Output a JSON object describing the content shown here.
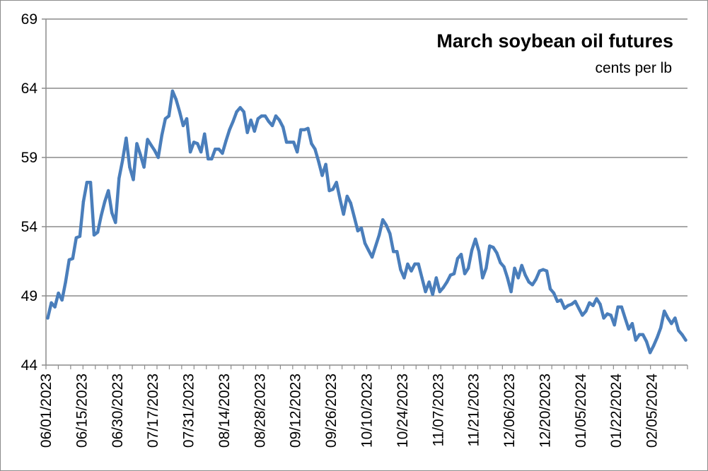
{
  "chart_data": {
    "type": "line",
    "title": "March soybean oil futures",
    "subtitle": "cents per lb",
    "xlabel": "",
    "ylabel": "",
    "ylim": [
      44,
      69
    ],
    "yticks": [
      44,
      49,
      54,
      59,
      64,
      69
    ],
    "grid": "horizontal",
    "colors": {
      "line": "#4a7ebb",
      "grid": "#8c8c8c"
    },
    "xtick_labels": [
      "06/01/2023",
      "06/15/2023",
      "06/30/2023",
      "07/17/2023",
      "07/31/2023",
      "08/14/2023",
      "08/28/2023",
      "09/12/2023",
      "09/26/2023",
      "10/10/2023",
      "10/24/2023",
      "11/07/2023",
      "11/21/2023",
      "12/06/2023",
      "12/20/2023",
      "01/05/2024",
      "01/22/2024",
      "02/05/2024"
    ],
    "series": [
      {
        "values": [
          47.4,
          48.5,
          48.2,
          49.2,
          48.7,
          50,
          51.6,
          51.7,
          53.2,
          53.3,
          55.8,
          57.2,
          57.2,
          53.4,
          53.6,
          54.8,
          55.8,
          56.6,
          55,
          54.3,
          57.5,
          58.8,
          60.4,
          58.3,
          57.4,
          60,
          59.2,
          58.3,
          60.3,
          59.9,
          59.5,
          59,
          60.6,
          61.8,
          62,
          63.8,
          63.2,
          62.3,
          61.3,
          61.8,
          59.4,
          60.1,
          60,
          59.4,
          60.7,
          58.9,
          58.9,
          59.6,
          59.6,
          59.3,
          60.2,
          61,
          61.6,
          62.3,
          62.6,
          62.3,
          60.8,
          61.7,
          60.9,
          61.8,
          62,
          62,
          61.6,
          61.3,
          62,
          61.7,
          61.2,
          60.1,
          60.1,
          60.1,
          59.4,
          61,
          61,
          61.1,
          60,
          59.6,
          58.7,
          57.7,
          58.5,
          56.6,
          56.7,
          57.2,
          56,
          54.9,
          56.2,
          55.7,
          54.7,
          53.7,
          53.9,
          52.8,
          52.3,
          51.8,
          52.6,
          53.4,
          54.5,
          54.1,
          53.5,
          52.2,
          52.2,
          50.9,
          50.3,
          51.3,
          50.8,
          51.3,
          51.3,
          50.3,
          49.3,
          50,
          49.1,
          50.3,
          49.3,
          49.6,
          50,
          50.5,
          50.6,
          51.7,
          52,
          50.6,
          51,
          52.3,
          53.1,
          52.2,
          50.3,
          51,
          52.6,
          52.5,
          52.1,
          51.4,
          51.1,
          50.3,
          49.3,
          51,
          50.3,
          51.2,
          50.5,
          50,
          49.8,
          50.2,
          50.8,
          50.9,
          50.8,
          49.5,
          49.2,
          48.6,
          48.7,
          48.1,
          48.3,
          48.4,
          48.6,
          48.1,
          47.6,
          47.9,
          48.5,
          48.3,
          48.8,
          48.4,
          47.4,
          47.7,
          47.6,
          46.9,
          48.2,
          48.2,
          47.4,
          46.6,
          47,
          45.8,
          46.2,
          46.2,
          45.7,
          44.9,
          45.4,
          46,
          46.7,
          47.9,
          47.4,
          47,
          47.4,
          46.5,
          46.2,
          45.8
        ]
      }
    ]
  }
}
